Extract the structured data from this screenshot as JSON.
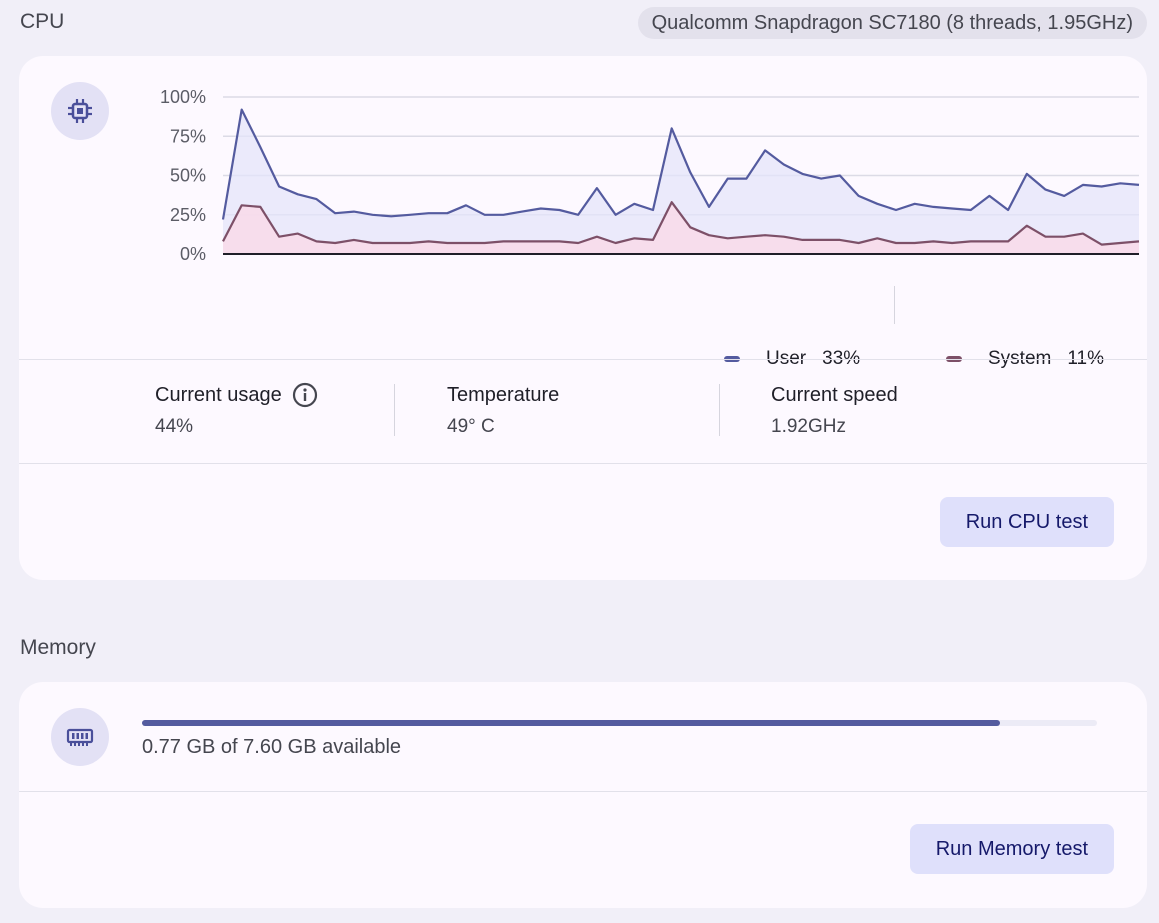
{
  "cpu": {
    "title": "CPU",
    "chip": "Qualcomm Snapdragon SC7180 (8 threads, 1.95GHz)",
    "icon": "cpu-icon",
    "stats": {
      "current_usage_label": "Current usage",
      "current_usage_value": "44%",
      "temperature_label": "Temperature",
      "temperature_value": "49° C",
      "speed_label": "Current speed",
      "speed_value": "1.92GHz"
    },
    "legend": {
      "user_label": "User",
      "user_value": "33%",
      "system_label": "System",
      "system_value": "11%"
    },
    "button": "Run CPU test"
  },
  "colors": {
    "user": "#545b9f",
    "system": "#7d5068",
    "user_fill": "#e4e4fa",
    "system_fill": "#f8dcea"
  },
  "chart_data": {
    "type": "area",
    "ylim": [
      0,
      100
    ],
    "yticks": [
      "0%",
      "25%",
      "50%",
      "75%",
      "100%"
    ],
    "series": [
      {
        "name": "User",
        "values": [
          22,
          92,
          68,
          43,
          38,
          35,
          26,
          27,
          25,
          24,
          25,
          26,
          26,
          31,
          25,
          25,
          27,
          29,
          28,
          25,
          42,
          25,
          32,
          28,
          80,
          52,
          30,
          48,
          48,
          66,
          57,
          51,
          48,
          50,
          37,
          32,
          28,
          32,
          30,
          29,
          28,
          37,
          28,
          51,
          41,
          37,
          44,
          43,
          45,
          44
        ]
      },
      {
        "name": "System",
        "values": [
          8,
          31,
          30,
          11,
          13,
          8,
          7,
          9,
          7,
          7,
          7,
          8,
          7,
          7,
          7,
          8,
          8,
          8,
          8,
          7,
          11,
          7,
          10,
          9,
          33,
          17,
          12,
          10,
          11,
          12,
          11,
          9,
          9,
          9,
          7,
          10,
          7,
          7,
          8,
          7,
          8,
          8,
          8,
          18,
          11,
          11,
          13,
          6,
          7,
          8
        ]
      }
    ]
  },
  "memory": {
    "title": "Memory",
    "icon": "memory-icon",
    "usage_fraction": 0.898,
    "available_text": "0.77 GB of 7.60 GB available",
    "button": "Run Memory test"
  }
}
